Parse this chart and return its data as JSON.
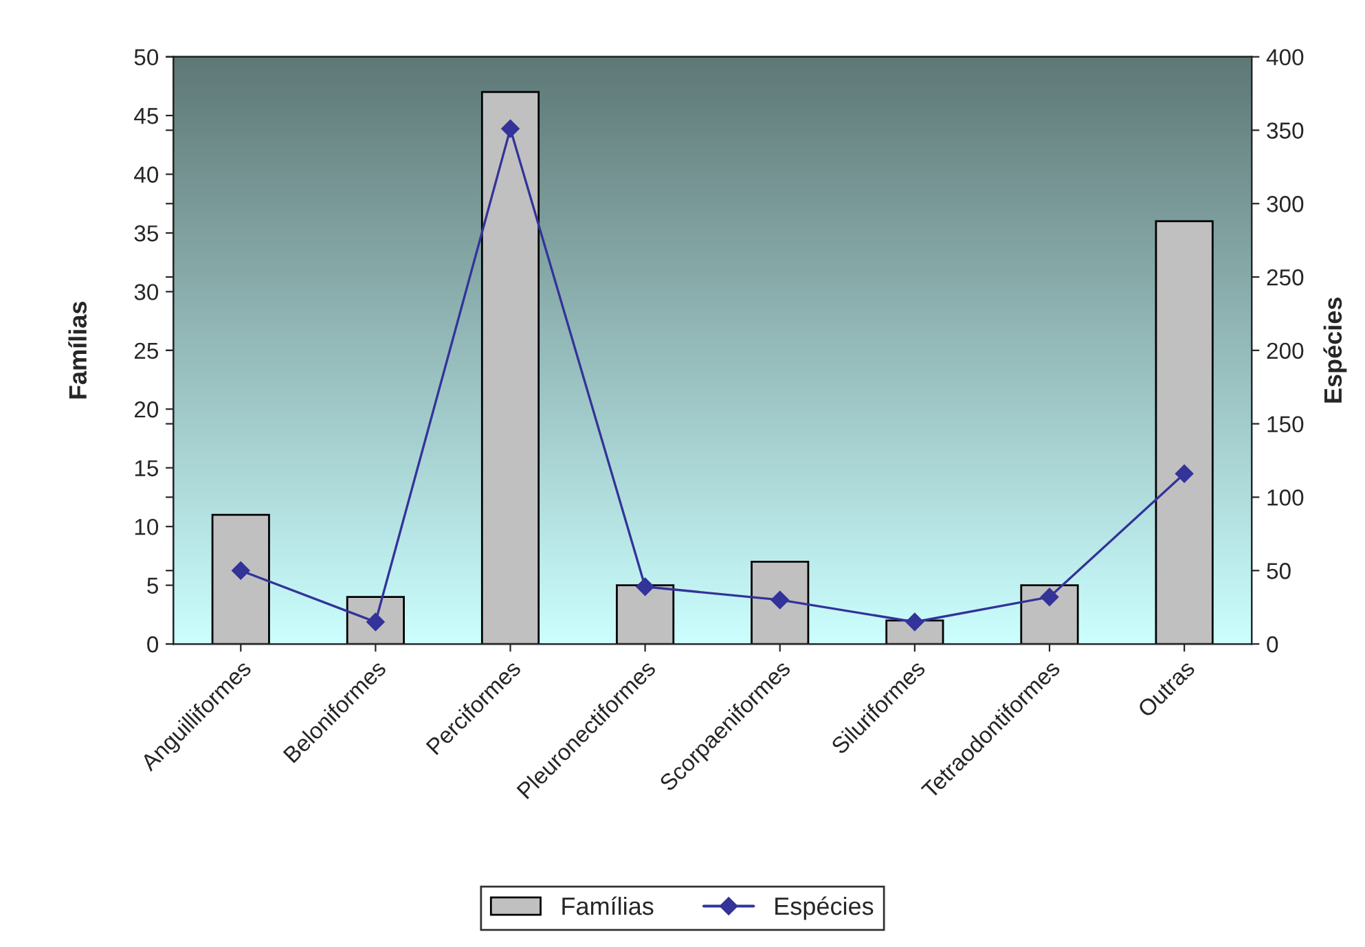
{
  "chart_data": {
    "type": "bar",
    "categories": [
      "Anguilliformes",
      "Beloniformes",
      "Perciformes",
      "Pleuronectiformes",
      "Scorpaeniformes",
      "Siluriformes",
      "Tetraodontiformes",
      "Outras"
    ],
    "series": [
      {
        "name": "Famílias",
        "color": "#c0c0c0",
        "values": [
          11,
          4,
          47,
          5,
          7,
          2,
          5,
          36
        ]
      },
      {
        "name": "Espécies",
        "type": "line",
        "axis": "y2",
        "color": "#333399",
        "values": [
          50,
          15,
          351,
          39,
          30,
          15,
          32,
          116
        ]
      }
    ],
    "ylabel": "Famílias",
    "y2label": "Espécies",
    "ylim": [
      0,
      50
    ],
    "yticks": [
      0,
      5,
      10,
      15,
      20,
      25,
      30,
      35,
      40,
      45,
      50
    ],
    "y2lim": [
      0,
      400
    ],
    "y2ticks": [
      0,
      50,
      100,
      150,
      200,
      250,
      300,
      350,
      400
    ],
    "grid": false,
    "legend": "bottom",
    "marker": "diamond",
    "line_style": "solid"
  }
}
